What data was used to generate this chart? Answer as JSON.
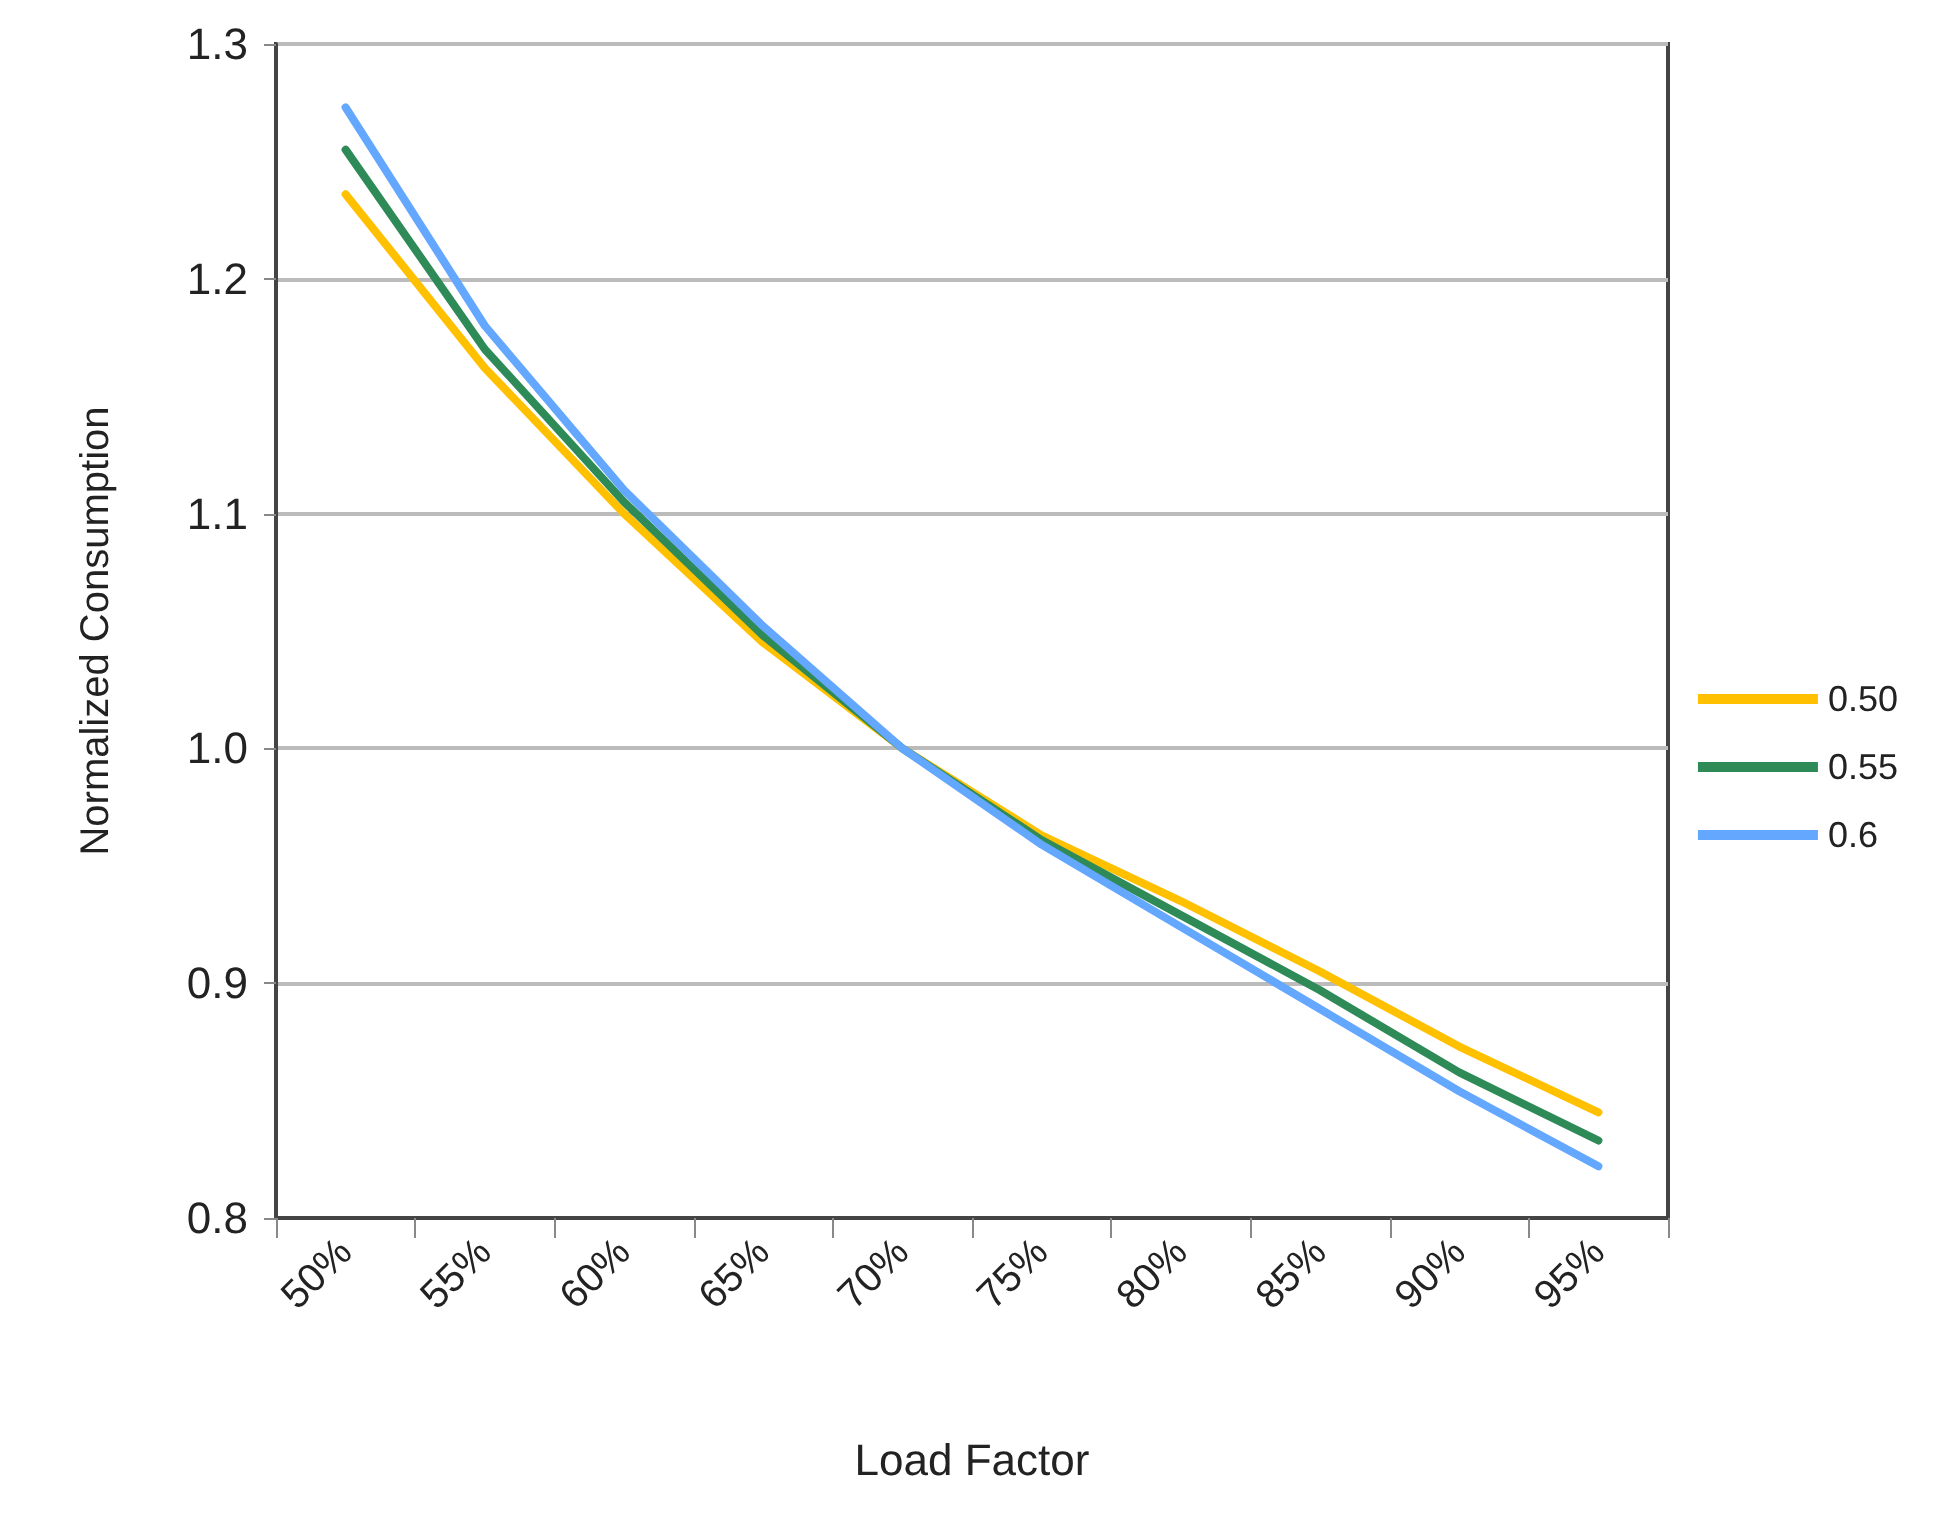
{
  "chart_data": {
    "type": "line",
    "xlabel": "Load Factor",
    "ylabel": "Normalized Consumption",
    "categories": [
      "50%",
      "55%",
      "60%",
      "65%",
      "70%",
      "75%",
      "80%",
      "85%",
      "90%",
      "95%"
    ],
    "series": [
      {
        "name": "0.50",
        "color": "#ffc000",
        "values": [
          1.236,
          1.162,
          1.1,
          1.045,
          1.0,
          0.963,
          0.935,
          0.905,
          0.873,
          0.845
        ]
      },
      {
        "name": "0.55",
        "color": "#2e8b57",
        "values": [
          1.255,
          1.17,
          1.105,
          1.048,
          1.0,
          0.961,
          0.929,
          0.897,
          0.862,
          0.833
        ]
      },
      {
        "name": "0.6",
        "color": "#63a7ff",
        "values": [
          1.273,
          1.18,
          1.11,
          1.052,
          1.0,
          0.959,
          0.924,
          0.889,
          0.854,
          0.822
        ]
      }
    ],
    "ylim": [
      0.8,
      1.3
    ],
    "yticks": [
      {
        "value": 0.8,
        "label": "0.8"
      },
      {
        "value": 0.9,
        "label": "0.9"
      },
      {
        "value": 1.0,
        "label": "1.0"
      },
      {
        "value": 1.1,
        "label": "1.1"
      },
      {
        "value": 1.2,
        "label": "1.2"
      },
      {
        "value": 1.3,
        "label": "1.3"
      }
    ],
    "grid": "y",
    "legend": "right",
    "marker": "none",
    "line_style": "solid"
  }
}
